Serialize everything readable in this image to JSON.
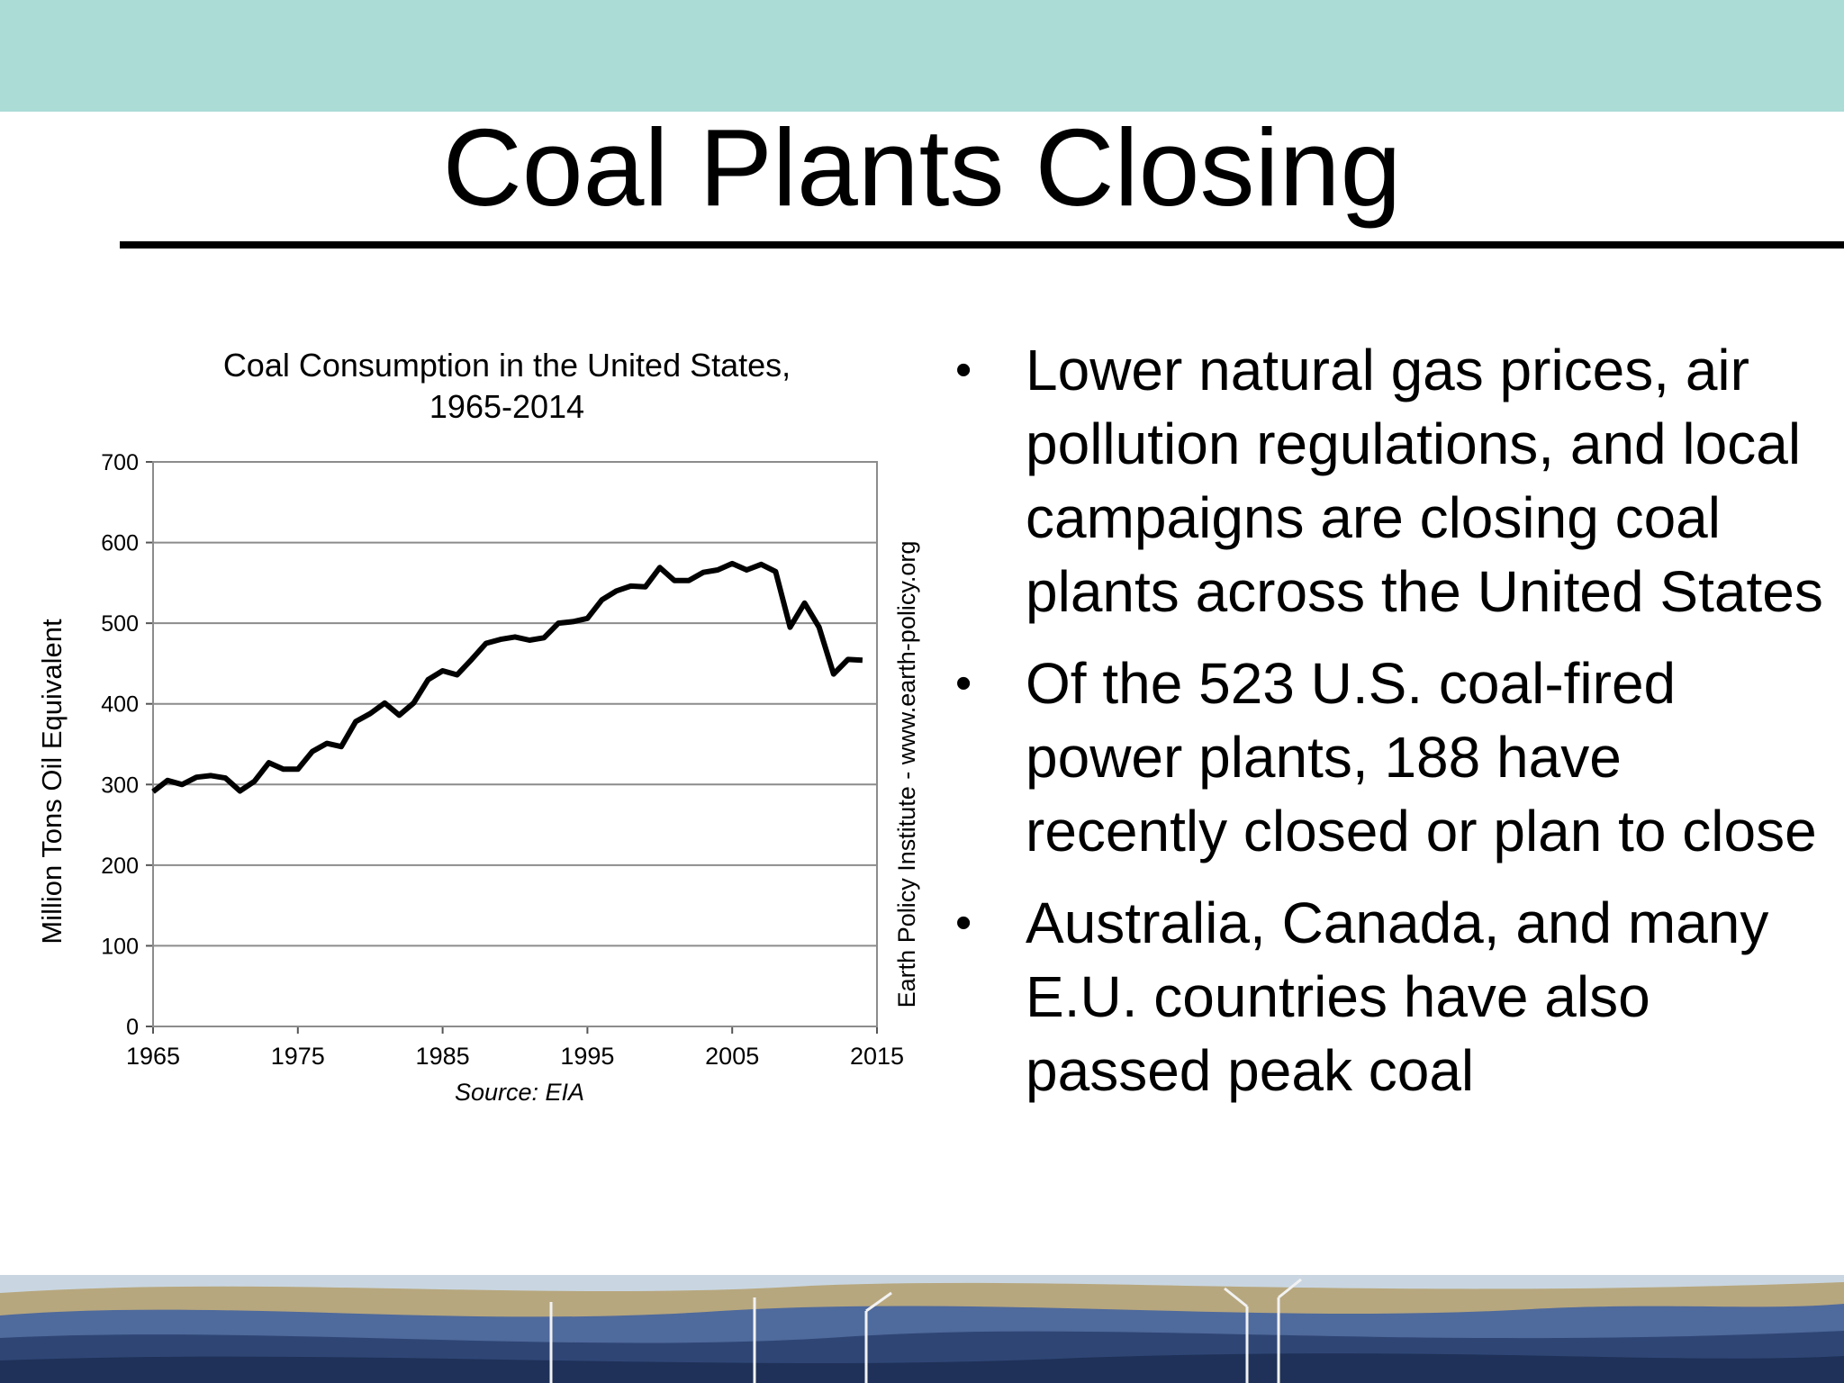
{
  "slide": {
    "title": "Coal Plants Closing",
    "bullets": [
      "Lower natural gas prices, air pollution regulations, and local campaigns are closing coal plants across the United States",
      "Of the 523 U.S. coal-fired power plants, 188 have recently closed or plan to close",
      "Australia, Canada, and many E.U. countries have also passed peak coal"
    ]
  },
  "colors": {
    "band": "#abdcd6",
    "line": "#000000",
    "grid": "#8c8c8c"
  },
  "chart_data": {
    "type": "line",
    "title_lines": [
      "Coal Consumption in the United States,",
      "1965-2014"
    ],
    "ylabel": "Million Tons Oil Equivalent",
    "xlabel": "Source: EIA",
    "credit": "Earth Policy Institute - www.earth-policy.org",
    "xlim": [
      1965,
      2015
    ],
    "ylim": [
      0,
      700
    ],
    "xticks": [
      1965,
      1975,
      1985,
      1995,
      2005,
      2015
    ],
    "yticks": [
      0,
      100,
      200,
      300,
      400,
      500,
      600,
      700
    ],
    "grid": true,
    "x": [
      1965,
      1966,
      1967,
      1968,
      1969,
      1970,
      1971,
      1972,
      1973,
      1974,
      1975,
      1976,
      1977,
      1978,
      1979,
      1980,
      1981,
      1982,
      1983,
      1984,
      1985,
      1986,
      1987,
      1988,
      1989,
      1990,
      1991,
      1992,
      1993,
      1994,
      1995,
      1996,
      1997,
      1998,
      1999,
      2000,
      2001,
      2002,
      2003,
      2004,
      2005,
      2006,
      2007,
      2008,
      2009,
      2010,
      2011,
      2012,
      2013,
      2014
    ],
    "values": [
      291,
      305,
      300,
      309,
      311,
      308,
      292,
      304,
      327,
      319,
      319,
      341,
      351,
      347,
      378,
      388,
      401,
      386,
      401,
      430,
      441,
      436,
      455,
      475,
      480,
      483,
      479,
      482,
      500,
      502,
      506,
      529,
      540,
      546,
      545,
      569,
      553,
      553,
      563,
      566,
      574,
      566,
      573,
      564,
      495,
      525,
      495,
      437,
      455,
      454
    ]
  }
}
